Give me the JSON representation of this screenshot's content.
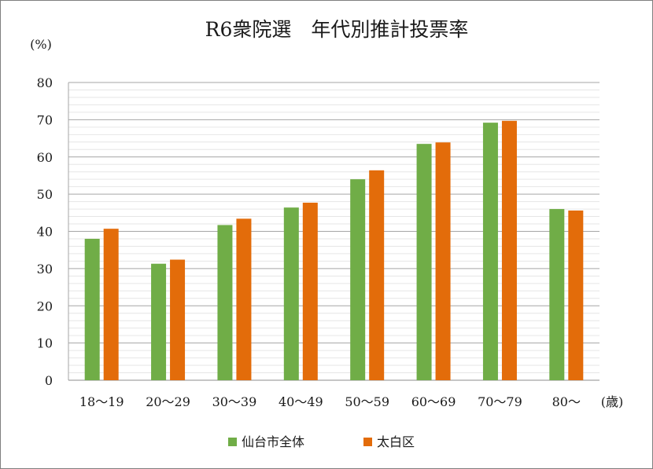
{
  "chart_data": {
    "type": "bar",
    "title": "R6衆院選　年代別推計投票率",
    "y_unit_label": "(%)",
    "x_unit_label": "(歳)",
    "ylim": [
      0,
      80
    ],
    "y_ticks": [
      "0",
      "10",
      "20",
      "30",
      "40",
      "50",
      "60",
      "70",
      "80"
    ],
    "grid": true,
    "legend_position": "bottom",
    "categories": [
      "18～19",
      "20～29",
      "30～39",
      "40～49",
      "50～59",
      "60～69",
      "70～79",
      "80～"
    ],
    "series": [
      {
        "name": "仙台市全体",
        "color": "#70ad47",
        "values": [
          38.0,
          31.3,
          41.7,
          46.4,
          54.0,
          63.5,
          69.2,
          46.0
        ]
      },
      {
        "name": "太白区",
        "color": "#e36c0a",
        "values": [
          40.7,
          32.4,
          43.4,
          47.7,
          56.4,
          63.9,
          69.7,
          45.6
        ]
      }
    ]
  }
}
